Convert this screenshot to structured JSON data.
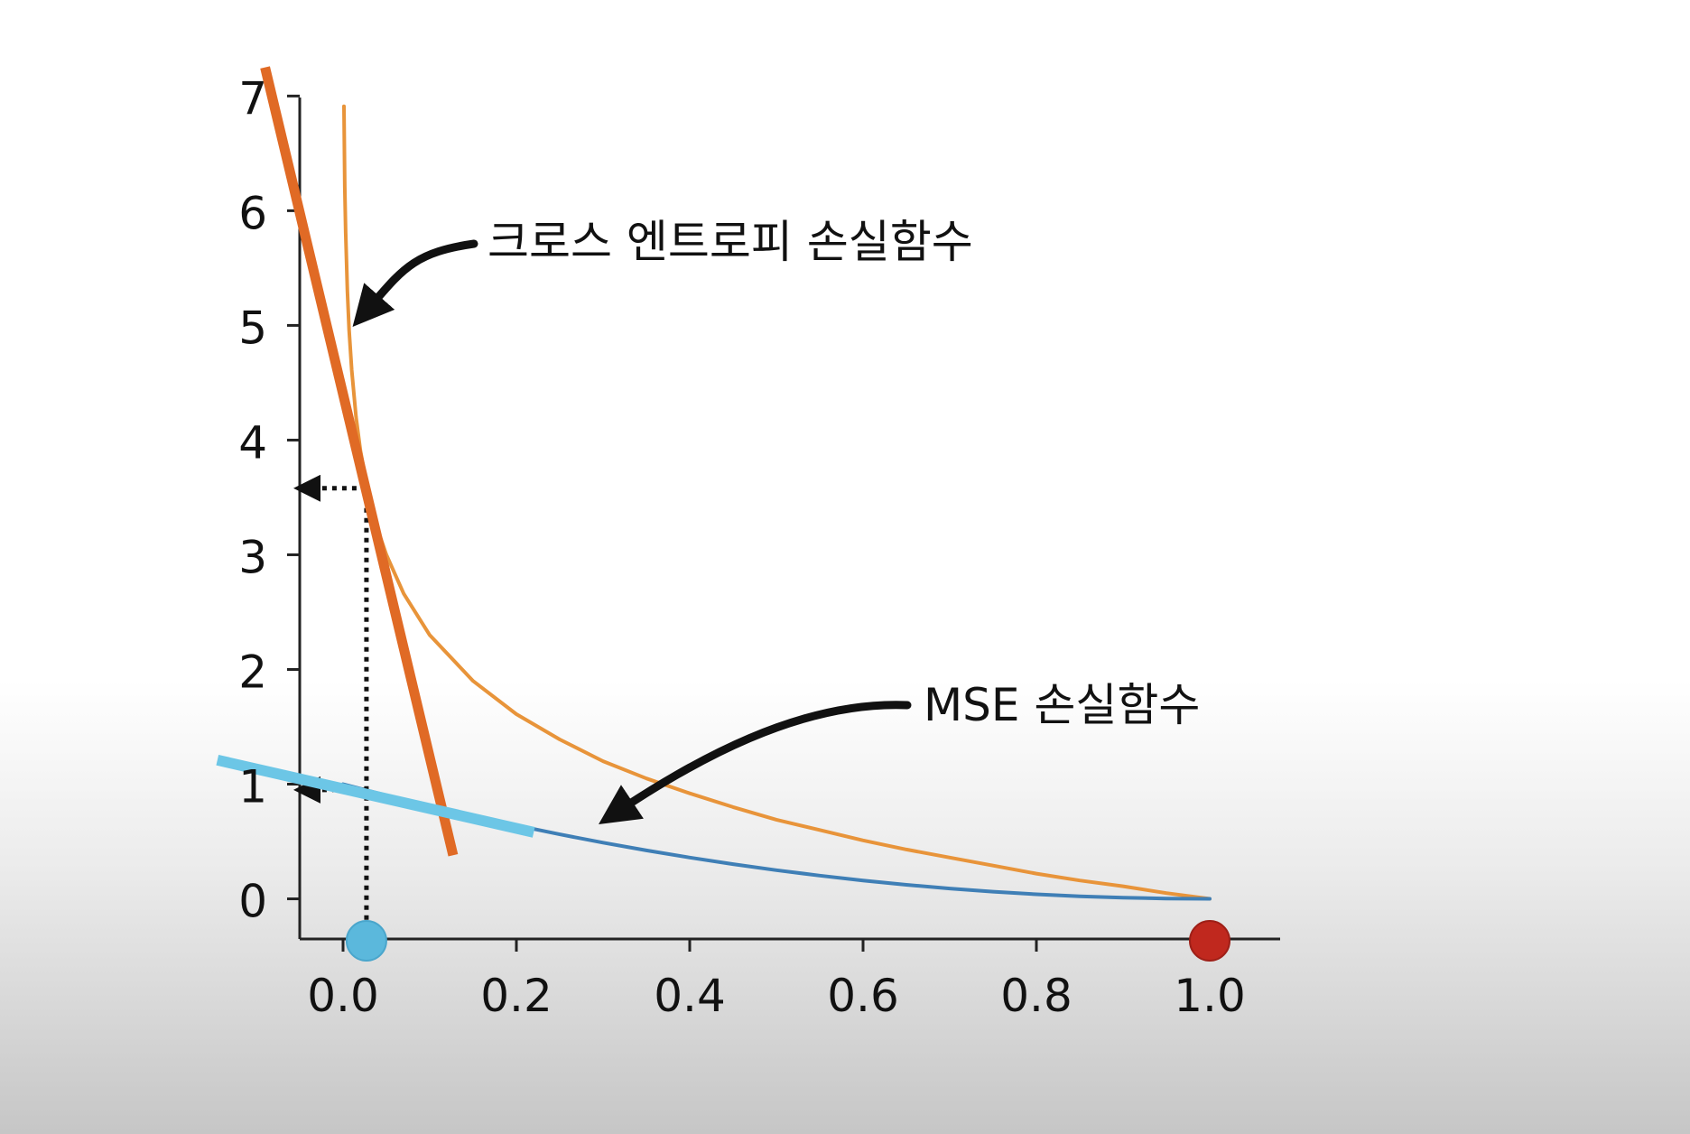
{
  "chart_data": {
    "type": "line",
    "title": "",
    "xlabel": "",
    "ylabel": "",
    "xlim": [
      -0.05,
      1.05
    ],
    "ylim": [
      -0.35,
      7.05
    ],
    "x_ticks": [
      0.0,
      0.2,
      0.4,
      0.6,
      0.8,
      1.0
    ],
    "x_tick_labels": [
      "0.0",
      "0.2",
      "0.4",
      "0.6",
      "0.8",
      "1.0"
    ],
    "y_ticks": [
      0,
      1,
      2,
      3,
      4,
      5,
      6,
      7
    ],
    "y_tick_labels": [
      "0",
      "1",
      "2",
      "3",
      "4",
      "5",
      "6",
      "7"
    ],
    "grid": false,
    "legend": "none",
    "series": [
      {
        "color": "#e8943a",
        "points": [
          [
            0.001,
            6.91
          ],
          [
            0.002,
            6.21
          ],
          [
            0.003,
            5.81
          ],
          [
            0.005,
            5.3
          ],
          [
            0.007,
            4.96
          ],
          [
            0.01,
            4.61
          ],
          [
            0.015,
            4.2
          ],
          [
            0.02,
            3.91
          ],
          [
            0.03,
            3.51
          ],
          [
            0.04,
            3.22
          ],
          [
            0.05,
            3.0
          ],
          [
            0.07,
            2.66
          ],
          [
            0.1,
            2.3
          ],
          [
            0.15,
            1.9
          ],
          [
            0.2,
            1.61
          ],
          [
            0.25,
            1.39
          ],
          [
            0.3,
            1.2
          ],
          [
            0.35,
            1.05
          ],
          [
            0.4,
            0.92
          ],
          [
            0.45,
            0.8
          ],
          [
            0.5,
            0.69
          ],
          [
            0.55,
            0.6
          ],
          [
            0.6,
            0.51
          ],
          [
            0.65,
            0.43
          ],
          [
            0.7,
            0.36
          ],
          [
            0.75,
            0.29
          ],
          [
            0.8,
            0.22
          ],
          [
            0.85,
            0.16
          ],
          [
            0.9,
            0.11
          ],
          [
            0.95,
            0.05
          ],
          [
            1.0,
            0.0
          ]
        ]
      },
      {
        "color": "#3f7fb6",
        "points": [
          [
            0.0,
            1.0
          ],
          [
            0.05,
            0.9025
          ],
          [
            0.1,
            0.81
          ],
          [
            0.15,
            0.7225
          ],
          [
            0.2,
            0.64
          ],
          [
            0.25,
            0.5625
          ],
          [
            0.3,
            0.49
          ],
          [
            0.35,
            0.4225
          ],
          [
            0.4,
            0.36
          ],
          [
            0.45,
            0.3025
          ],
          [
            0.5,
            0.25
          ],
          [
            0.55,
            0.2025
          ],
          [
            0.6,
            0.16
          ],
          [
            0.65,
            0.1225
          ],
          [
            0.7,
            0.09
          ],
          [
            0.75,
            0.0625
          ],
          [
            0.8,
            0.04
          ],
          [
            0.85,
            0.0225
          ],
          [
            0.9,
            0.01
          ],
          [
            0.95,
            0.0025
          ],
          [
            1.0,
            0.0
          ]
        ]
      }
    ],
    "tangent_lines": [
      {
        "color": "#e06a25",
        "from": [
          -0.09,
          7.25
        ],
        "to": [
          0.127,
          0.38
        ]
      },
      {
        "color": "#6cc6e6",
        "from": [
          -0.145,
          1.21
        ],
        "to": [
          0.22,
          0.58
        ]
      }
    ],
    "guides": {
      "point_x": 0.027,
      "cross_entropy_value": 3.58,
      "mse_value": 0.95
    },
    "markers": [
      {
        "x": 0.027,
        "color": "#5bb8dc"
      },
      {
        "x": 1.0,
        "color": "#c0281e"
      }
    ],
    "annotations": [
      {
        "text": "크로스 엔트로피 손실함수",
        "target": [
          0.015,
          5.0
        ]
      },
      {
        "text": "MSE 손실함수",
        "target": [
          0.3,
          0.65
        ]
      }
    ]
  }
}
